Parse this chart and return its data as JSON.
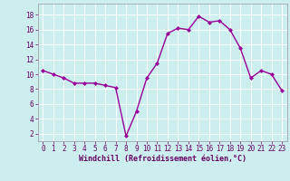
{
  "x": [
    0,
    1,
    2,
    3,
    4,
    5,
    6,
    7,
    8,
    9,
    10,
    11,
    12,
    13,
    14,
    15,
    16,
    17,
    18,
    19,
    20,
    21,
    22,
    23
  ],
  "y": [
    10.5,
    10.0,
    9.5,
    8.8,
    8.8,
    8.8,
    8.5,
    8.2,
    1.7,
    5.0,
    9.5,
    11.5,
    15.5,
    16.2,
    16.0,
    17.8,
    17.0,
    17.2,
    16.0,
    13.5,
    9.5,
    10.5,
    10.0,
    7.8
  ],
  "line_color": "#990099",
  "marker": "D",
  "marker_size": 2.0,
  "line_width": 1.0,
  "background_color": "#cceeee",
  "grid_color": "#ffffff",
  "xlabel": "Windchill (Refroidissement éolien,°C)",
  "xlabel_fontsize": 6.0,
  "xlabel_color": "#660066",
  "xtick_labels": [
    "0",
    "1",
    "2",
    "3",
    "4",
    "5",
    "6",
    "7",
    "8",
    "9",
    "10",
    "11",
    "12",
    "13",
    "14",
    "15",
    "16",
    "17",
    "18",
    "19",
    "20",
    "21",
    "22",
    "23"
  ],
  "ytick_values": [
    2,
    4,
    6,
    8,
    10,
    12,
    14,
    16,
    18
  ],
  "ylim": [
    1.0,
    19.5
  ],
  "xlim": [
    -0.5,
    23.5
  ],
  "tick_fontsize": 5.5,
  "tick_color": "#660066"
}
